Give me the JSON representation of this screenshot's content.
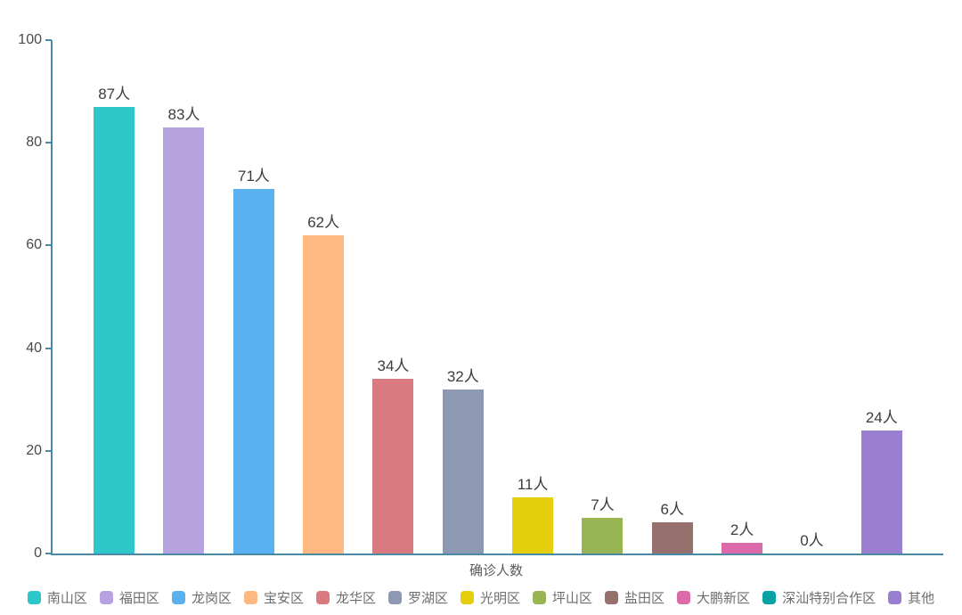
{
  "chart_data": {
    "type": "bar",
    "title": "",
    "categories": [
      "南山区",
      "福田区",
      "龙岗区",
      "宝安区",
      "龙华区",
      "罗湖区",
      "光明区",
      "坪山区",
      "盐田区",
      "大鹏新区",
      "深汕特别合作区",
      "其他"
    ],
    "values": [
      87,
      83,
      71,
      62,
      34,
      32,
      11,
      7,
      6,
      2,
      0,
      24
    ],
    "value_labels": [
      "87人",
      "83人",
      "71人",
      "62人",
      "34人",
      "32人",
      "11人",
      "7人",
      "6人",
      "2人",
      "0人",
      "24人"
    ],
    "unit_suffix": "人",
    "xlabel": "确诊人数",
    "ylabel": "",
    "ylim": [
      0,
      100
    ],
    "yticks": [
      0,
      20,
      40,
      60,
      80,
      100
    ],
    "colors": [
      "#2ec7c9",
      "#b6a2de",
      "#5ab1ef",
      "#ffb980",
      "#d87a80",
      "#8d98b3",
      "#e5cf0d",
      "#97b552",
      "#95706d",
      "#dc69aa",
      "#07a2a4",
      "#9a7fd1"
    ],
    "axis_line_color": "#4a89a4",
    "grid": false,
    "legend_position": "bottom",
    "background_color": "#ffffff"
  }
}
